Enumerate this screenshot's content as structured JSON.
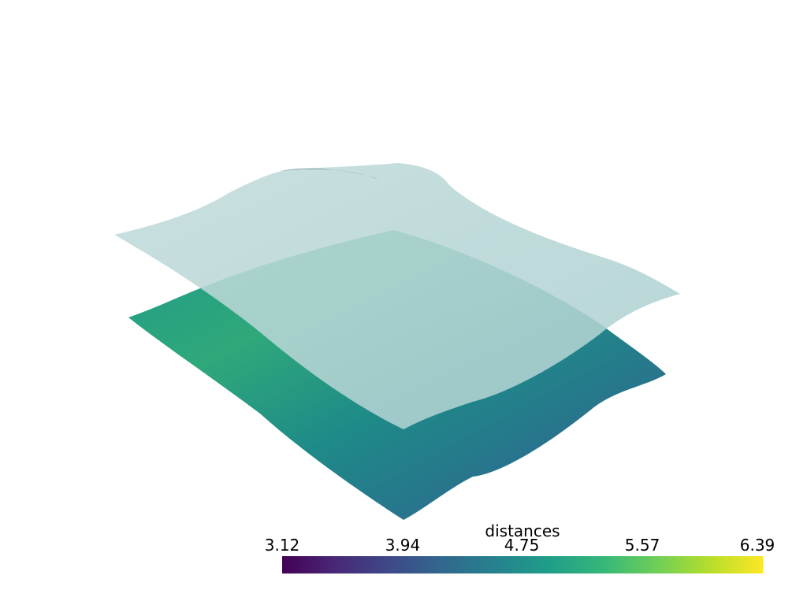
{
  "colorbar": {
    "title": "distances",
    "range": [
      3.12,
      6.39
    ],
    "ticks": [
      3.12,
      3.94,
      4.75,
      5.57,
      6.39
    ],
    "colormap": "viridis"
  }
}
